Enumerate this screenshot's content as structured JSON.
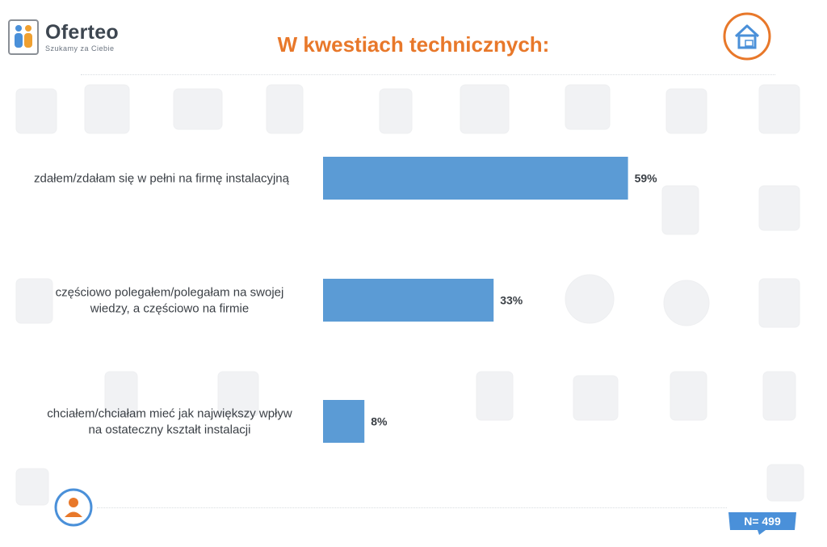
{
  "logo": {
    "name": "Oferteo",
    "tagline": "Szukamy za Ciebie"
  },
  "title": "W kwestiach technicznych:",
  "sample_badge": "N= 499",
  "colors": {
    "bar": "#5b9bd5",
    "title": "#e8782a",
    "icon": "#e8782a"
  },
  "icons": {
    "house": "house-icon",
    "person": "person-icon"
  },
  "chart_data": {
    "type": "bar",
    "orientation": "horizontal",
    "categories": [
      [
        "zdałem/zdałam się w pełni na firmę instalacyjną"
      ],
      [
        "częściowo polegałem/polegałam na swojej",
        "wiedzy, a częściowo na firmie"
      ],
      [
        "chciałem/chciałam mieć jak największy wpływ",
        "na ostateczny kształt instalacji"
      ]
    ],
    "values": [
      59,
      33,
      8
    ],
    "value_labels": [
      "59%",
      "33%",
      "8%"
    ],
    "xlim": [
      0,
      100
    ],
    "grid": false,
    "legend": "none"
  }
}
